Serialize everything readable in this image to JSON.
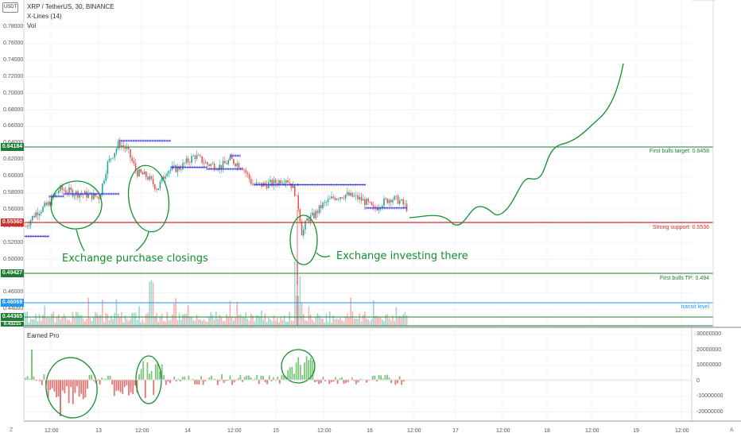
{
  "header": {
    "currency_badge": "USDT",
    "symbol_line": "XRP / TetherUS, 30, BINANCE",
    "study1": "X-Lines (14)",
    "study2": "Vol"
  },
  "indicator_title": "Earned Pro",
  "price_axis": [
    "0.78000",
    "0.76000",
    "0.74000",
    "0.72000",
    "0.70000",
    "0.68000",
    "0.66000",
    "0.64000",
    "0.62000",
    "0.60000",
    "0.58000",
    "0.56000",
    "0.54000",
    "0.52000",
    "0.50000",
    "0.48000",
    "0.46000",
    "0.44000",
    "0.42000"
  ],
  "price_tags": [
    {
      "text": "0.64184",
      "color": "#1e7d32"
    },
    {
      "text": "0.55360",
      "color": "#d32f2f"
    },
    {
      "text": "0.49427",
      "color": "#1e7d32"
    },
    {
      "text": "0.46069",
      "color": "#2196f3"
    },
    {
      "text": "0.44365",
      "color": "#1e7d32"
    },
    {
      "text": "0.43215",
      "color": "#1e7d32"
    }
  ],
  "levels": {
    "first_bulls_target": "First bulls target: 0.6458",
    "strong_support": "Strong support: 0.5536",
    "first_bulls_tp": "First bulls TP: 0.494",
    "transit": "transit level"
  },
  "annotations": {
    "left": "Exchange purchase closings",
    "right": "Exchange investing there"
  },
  "indicator_axis": [
    "30000000",
    "20000000",
    "10000000",
    "0",
    "-10000000",
    "-20000000"
  ],
  "time_axis": [
    "12:00",
    "13",
    "12:00",
    "14",
    "12:00",
    "15",
    "12:00",
    "16",
    "12:00",
    "17",
    "12:00",
    "18",
    "12:00",
    "19",
    "12:00"
  ],
  "bottom_icons": {
    "left": "Z",
    "right": "A"
  },
  "colors": {
    "green": "#1e7d32",
    "red": "#d32f2f",
    "blue": "#2196f3",
    "up": "#26a69a",
    "down": "#ef5350",
    "marker": "#3c3cd8",
    "drawing": "#138f2c"
  }
}
